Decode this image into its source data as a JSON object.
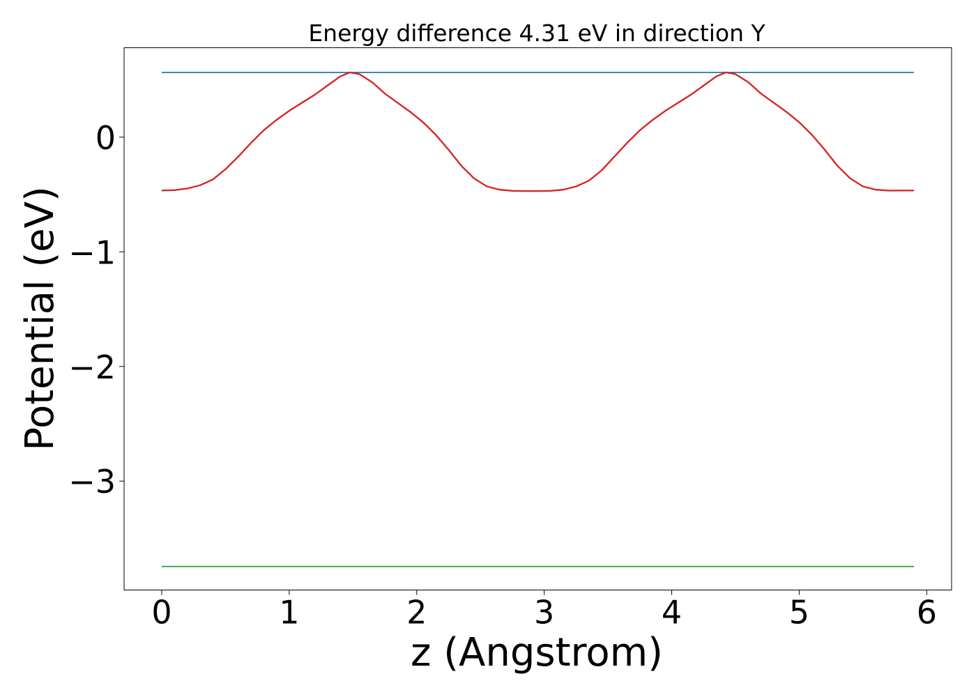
{
  "chart_data": {
    "type": "line",
    "title": "Energy difference 4.31 eV in direction Y",
    "xlabel": "z (Angstrom)",
    "ylabel": "Potential (eV)",
    "xlim": [
      -0.295,
      6.195
    ],
    "ylim": [
      -3.95,
      0.78
    ],
    "x_ticks": [
      0,
      1,
      2,
      3,
      4,
      5,
      6
    ],
    "x_tick_labels": [
      "0",
      "1",
      "2",
      "3",
      "4",
      "5",
      "6"
    ],
    "y_ticks": [
      0,
      -1,
      -2,
      -3
    ],
    "y_tick_labels": [
      "0",
      "−1",
      "−2",
      "−3"
    ],
    "grid": false,
    "legend": "none",
    "series": [
      {
        "color": "#1f77b4",
        "x": [
          0,
          5.9
        ],
        "y": [
          0.565,
          0.565
        ]
      },
      {
        "color": "#d62728",
        "x": [
          0,
          0.1,
          0.2,
          0.3,
          0.4,
          0.5,
          0.6,
          0.7,
          0.8,
          0.9,
          1.0,
          1.1,
          1.2,
          1.3,
          1.4,
          1.475,
          1.55,
          1.65,
          1.75,
          1.85,
          1.95,
          2.05,
          2.15,
          2.25,
          2.35,
          2.45,
          2.55,
          2.65,
          2.75,
          2.85,
          2.95,
          3.05,
          3.15,
          3.25,
          3.35,
          3.45,
          3.55,
          3.65,
          3.75,
          3.85,
          3.95,
          4.05,
          4.15,
          4.25,
          4.35,
          4.425,
          4.5,
          4.6,
          4.7,
          4.8,
          4.9,
          5.0,
          5.1,
          5.2,
          5.3,
          5.4,
          5.5,
          5.6,
          5.7,
          5.8,
          5.9
        ],
        "y": [
          -0.465,
          -0.462,
          -0.448,
          -0.42,
          -0.37,
          -0.28,
          -0.17,
          -0.05,
          0.06,
          0.15,
          0.23,
          0.3,
          0.37,
          0.45,
          0.53,
          0.565,
          0.55,
          0.48,
          0.38,
          0.3,
          0.22,
          0.13,
          0.02,
          -0.11,
          -0.25,
          -0.36,
          -0.43,
          -0.458,
          -0.468,
          -0.47,
          -0.47,
          -0.468,
          -0.458,
          -0.43,
          -0.38,
          -0.29,
          -0.17,
          -0.05,
          0.06,
          0.15,
          0.23,
          0.3,
          0.37,
          0.45,
          0.53,
          0.565,
          0.55,
          0.48,
          0.38,
          0.3,
          0.22,
          0.13,
          0.02,
          -0.11,
          -0.25,
          -0.36,
          -0.43,
          -0.458,
          -0.466,
          -0.465,
          -0.465
        ]
      },
      {
        "color": "#2ca02c",
        "x": [
          0,
          5.9
        ],
        "y": [
          -3.745,
          -3.745
        ]
      }
    ]
  }
}
